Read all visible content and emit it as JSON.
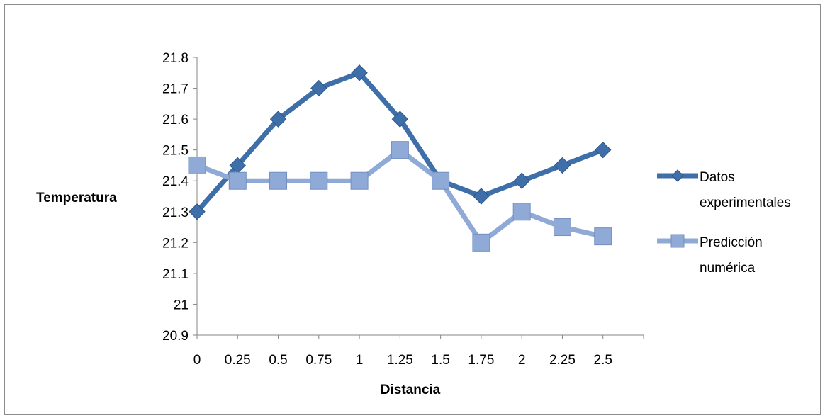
{
  "chart_data": {
    "type": "line",
    "title": "",
    "xlabel": "Distancia",
    "ylabel": "Temperatura",
    "categories": [
      "0",
      "0.25",
      "0.5",
      "0.75",
      "1",
      "1.25",
      "1.5",
      "1.75",
      "2",
      "2.25",
      "2.5"
    ],
    "y_ticks": [
      "20.9",
      "21",
      "21.1",
      "21.2",
      "21.3",
      "21.4",
      "21.5",
      "21.6",
      "21.7",
      "21.8"
    ],
    "ylim": [
      20.9,
      21.8
    ],
    "grid": false,
    "legend_position": "right",
    "series": [
      {
        "name": "Datos experimentales",
        "legend_lines": [
          "Datos",
          "experimentales"
        ],
        "color": "#3f6fa8",
        "marker": "diamond",
        "values": [
          21.3,
          21.45,
          21.6,
          21.7,
          21.75,
          21.6,
          21.4,
          21.35,
          21.4,
          21.45,
          21.5
        ]
      },
      {
        "name": "Predicción numérica",
        "legend_lines": [
          "Predicción",
          "numérica"
        ],
        "color": "#8faad6",
        "marker": "square",
        "values": [
          21.45,
          21.4,
          21.4,
          21.4,
          21.4,
          21.5,
          21.4,
          21.2,
          21.3,
          21.25,
          21.22
        ]
      }
    ]
  }
}
